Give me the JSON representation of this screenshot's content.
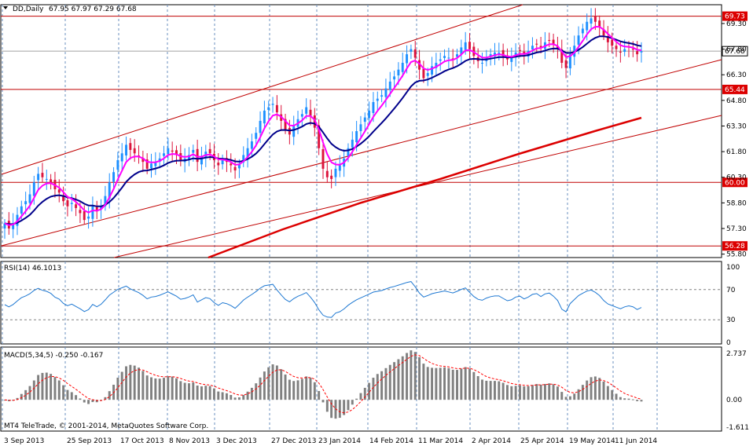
{
  "header": {
    "symbol": "DD,Daily",
    "ohlc": "67.95 67.97 67.29 67.68"
  },
  "price_axis": {
    "ticks": [
      "69.30",
      "67.80",
      "66.30",
      "64.80",
      "63.30",
      "61.80",
      "60.30",
      "58.80",
      "57.30",
      "55.80"
    ],
    "current_price": "67.68"
  },
  "levels": [
    {
      "value": 69.73,
      "label": "69.73"
    },
    {
      "value": 65.44,
      "label": "65.44"
    },
    {
      "value": 60.0,
      "label": "60.00"
    },
    {
      "value": 56.28,
      "label": "56.28"
    }
  ],
  "rsi": {
    "label": "RSI(14) 46.1013",
    "ticks": [
      "100",
      "70",
      "30",
      "0"
    ],
    "levels": [
      70,
      30
    ]
  },
  "macd": {
    "label": "MACD(5,34,5) -0.250 -0.167",
    "ticks": [
      "2.737",
      "0.00",
      "-1.611"
    ]
  },
  "footer": {
    "copyright": "MT4 TeleTrade, © 2001-2014, MetaQuotes Software Corp."
  },
  "time_axis": {
    "labels": [
      "3 Sep 2013",
      "25 Sep 2013",
      "17 Oct 2013",
      "8 Nov 2013",
      "3 Dec 2013",
      "27 Dec 2013",
      "23 Jan 2014",
      "14 Feb 2014",
      "11 Mar 2014",
      "2 Apr 2014",
      "25 Apr 2014",
      "19 May 2014",
      "11 Jun 2014"
    ]
  },
  "colors": {
    "bull": "#1e90ff",
    "bear": "#dc143c",
    "ma_fast": "#ff00ff",
    "ma_mid": "#00008b",
    "ma_slow": "#dc0000",
    "channel": "#c00000",
    "grid": "#6a8fbf",
    "rsi_line": "#1e78d2",
    "macd_hist": "#808080",
    "macd_signal": "#ff0000"
  },
  "chart_data": {
    "type": "candlestick",
    "symbol": "DD",
    "timeframe": "Daily",
    "price_range": [
      55.6,
      70.4
    ],
    "closes": [
      57.6,
      57.3,
      57.6,
      58.1,
      58.6,
      58.9,
      59.3,
      60.0,
      60.5,
      60.3,
      60.2,
      60.0,
      59.6,
      59.4,
      58.9,
      58.6,
      58.8,
      58.5,
      58.2,
      57.8,
      58.0,
      58.6,
      58.3,
      58.6,
      59.2,
      60.0,
      60.6,
      61.3,
      61.7,
      62.2,
      61.9,
      61.7,
      61.5,
      61.2,
      60.8,
      61.1,
      61.2,
      61.4,
      61.7,
      62.0,
      61.8,
      61.6,
      61.3,
      61.4,
      61.6,
      61.9,
      61.2,
      61.5,
      61.8,
      61.7,
      61.3,
      61.0,
      61.3,
      61.2,
      61.0,
      60.7,
      61.1,
      61.6,
      62.0,
      62.4,
      62.9,
      63.6,
      64.2,
      64.4,
      64.6,
      64.1,
      63.6,
      63.1,
      62.8,
      63.3,
      63.7,
      64.0,
      64.4,
      63.9,
      63.2,
      62.0,
      60.8,
      60.3,
      60.2,
      60.8,
      61.0,
      61.4,
      62.0,
      62.5,
      63.0,
      63.4,
      63.8,
      64.2,
      64.7,
      64.9,
      65.1,
      65.5,
      65.9,
      66.2,
      66.6,
      67.0,
      67.5,
      67.8,
      67.3,
      66.6,
      66.1,
      66.4,
      66.8,
      67.0,
      67.2,
      67.4,
      67.3,
      67.2,
      67.5,
      67.9,
      68.2,
      67.8,
      67.4,
      67.1,
      67.0,
      67.3,
      67.5,
      67.6,
      67.6,
      67.4,
      67.2,
      67.3,
      67.6,
      67.7,
      67.5,
      67.7,
      68.0,
      68.1,
      67.9,
      68.2,
      68.3,
      68.1,
      67.8,
      67.0,
      66.7,
      67.5,
      68.0,
      68.6,
      69.0,
      69.4,
      69.6,
      69.4,
      69.1,
      68.6,
      68.2,
      68.0,
      67.8,
      67.6,
      67.8,
      67.9,
      67.8,
      67.5,
      67.68
    ],
    "rsi": {
      "period": 14,
      "value": 46.1013,
      "overbought": 70,
      "oversold": 30
    },
    "macd": {
      "fast": 5,
      "slow": 34,
      "signal": 5,
      "main": -0.25,
      "signal_value": -0.167,
      "range": [
        -1.611,
        2.737
      ]
    },
    "horizontal_levels": [
      69.73,
      65.44,
      60.0,
      56.28
    ],
    "x_labels": [
      "3 Sep 2013",
      "25 Sep 2013",
      "17 Oct 2013",
      "8 Nov 2013",
      "3 Dec 2013",
      "27 Dec 2013",
      "23 Jan 2014",
      "14 Feb 2014",
      "11 Mar 2014",
      "2 Apr 2014",
      "25 Apr 2014",
      "19 May 2014",
      "11 Jun 2014"
    ]
  }
}
